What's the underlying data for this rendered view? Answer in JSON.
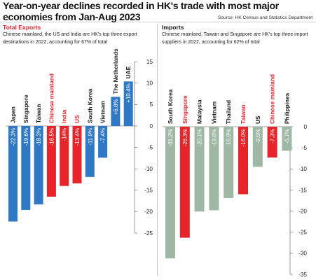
{
  "header": {
    "title": "Year-on-year declines recorded in HK's trade with most major economies from Jan-Aug 2023",
    "source": "Source: HK Census and Statistics Department"
  },
  "colors": {
    "blue": "#2f79c4",
    "red": "#e8242b",
    "sage": "#9fb8a5",
    "text": "#1a1a1a"
  },
  "chart_data": [
    {
      "type": "bar",
      "title": "Total Exports",
      "subtitle": "Chinese mainland, the US and India are HK's top three export destinations in 2022, accounting for 67% of total",
      "categories": [
        "Japan",
        "Singapore",
        "Taiwan",
        "Chinese mainland",
        "India",
        "US",
        "South Korea",
        "Vietnam",
        "The Netherlands",
        "UAE"
      ],
      "values": [
        -22.3,
        -19.6,
        -18.3,
        -16.5,
        -14,
        -13.4,
        -11.9,
        -7.4,
        6.8,
        10.4
      ],
      "value_labels": [
        "-22.3%",
        "-19.6%",
        "-18.3%",
        "-16.5%",
        "-14%",
        "-13.4%",
        "-11.9%",
        "-7.4%",
        "+6.8%",
        "+10.4%"
      ],
      "highlight": [
        "Chinese mainland",
        "India",
        "US"
      ],
      "ylim": [
        -28,
        15
      ],
      "yticks": [
        15,
        10,
        5,
        0,
        -5,
        -10,
        -15,
        -20,
        -25
      ],
      "ytick_labels": [
        "15",
        "10",
        "5",
        "0",
        "-5",
        "-10",
        "-15",
        "-20",
        "-25"
      ],
      "axis_side": "right",
      "bar_color": "blue",
      "highlight_color": "red"
    },
    {
      "type": "bar",
      "title": "Imports",
      "subtitle": "Chinese mainland, Taiwan and Singapore are HK's top three import suppliers in 2022, accounting for 62% of total",
      "categories": [
        "South Korea",
        "Singapore",
        "Malaysia",
        "Vietnam",
        "Thailand",
        "Taiwan",
        "US",
        "Chinese mainland",
        "Philippines"
      ],
      "values": [
        -31.2,
        -26.3,
        -20.1,
        -19.8,
        -16.9,
        -16,
        -9.5,
        -7.3,
        -5.7
      ],
      "value_labels": [
        "-31.2%",
        "-26.3%",
        "-20.1%",
        "-19.8%",
        "-16.9%",
        "-16.0%",
        "-9.5%",
        "-7.3%",
        "-5.7%"
      ],
      "highlight": [
        "Singapore",
        "Taiwan",
        "Chinese mainland"
      ],
      "ylim": [
        -35,
        5
      ],
      "yticks": [
        0,
        -5,
        -10,
        -15,
        -20,
        -25,
        -30,
        -35
      ],
      "ytick_labels": [
        "0",
        "-5",
        "-10",
        "-15",
        "-20",
        "-25",
        "-30",
        "-35"
      ],
      "axis_side": "right",
      "bar_color": "sage",
      "highlight_color": "red"
    }
  ]
}
